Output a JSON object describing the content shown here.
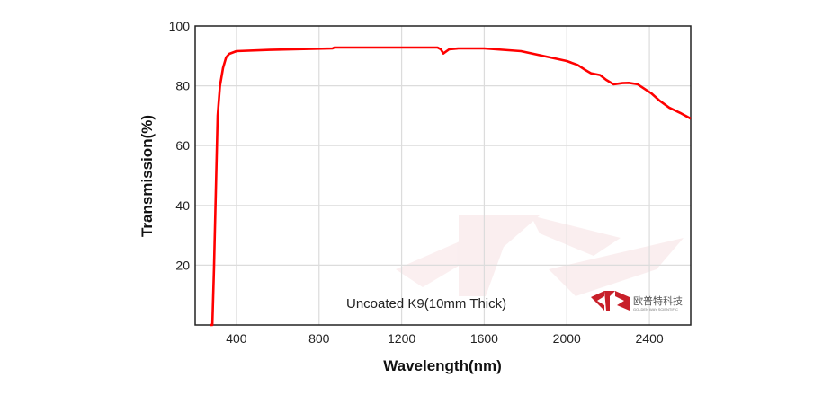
{
  "chart_data": {
    "type": "line",
    "title": "",
    "xlabel": "Wavelength(nm)",
    "ylabel": "Transmission(%)",
    "xlim": [
      200,
      2600
    ],
    "ylim": [
      0,
      100
    ],
    "xticks": [
      400,
      800,
      1200,
      1600,
      2000,
      2400
    ],
    "yticks": [
      20,
      40,
      60,
      80,
      100
    ],
    "grid": true,
    "annotation": "Uncoated K9(10mm Thick)",
    "series": [
      {
        "color": "#ff0000",
        "x": [
          270,
          283,
          291,
          300,
          309,
          320,
          335,
          350,
          365,
          400,
          561,
          865,
          874,
          1374,
          1390,
          1402,
          1430,
          1474,
          1600,
          1778,
          2000,
          2052,
          2090,
          2117,
          2161,
          2190,
          2226,
          2270,
          2300,
          2343,
          2409,
          2450,
          2496,
          2550,
          2600
        ],
        "y": [
          0,
          0,
          18.6,
          45,
          70,
          80,
          86,
          89.5,
          90.7,
          91.6,
          92,
          92.5,
          92.8,
          92.8,
          92.2,
          90.8,
          92.2,
          92.5,
          92.5,
          91.6,
          88.3,
          87,
          85.3,
          84.2,
          83.6,
          82,
          80.5,
          80.9,
          81,
          80.5,
          77.5,
          75,
          72.7,
          70.9,
          69
        ]
      }
    ]
  },
  "logo": {
    "cn": "欧普特科技",
    "en": "GOLDEN WAY SCIENTIFIC",
    "color": "#c8202a"
  }
}
